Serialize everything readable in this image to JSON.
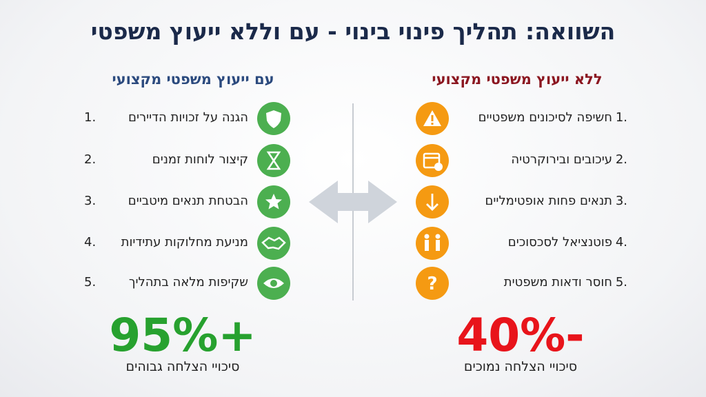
{
  "title": "השוואה: תהליך פינוי בינוי - עם וללא ייעוץ משפטי",
  "with_advice": {
    "heading": "עם ייעוץ משפטי מקצועי",
    "items": [
      {
        "number": "1.",
        "text": "הגנה על זכויות הדיירים"
      },
      {
        "number": "2.",
        "text": "קיצור לוחות זמנים"
      },
      {
        "number": "3.",
        "text": "הבטחת תנאים מיטביים"
      },
      {
        "number": "4.",
        "text": "מניעת מחלוקות עתידיות"
      },
      {
        "number": "5.",
        "text": "שקיפות מלאה בתהליך"
      }
    ],
    "stat": "95%+",
    "stat_label": "סיכויי הצלחה גבוהים"
  },
  "without_advice": {
    "heading": "ללא ייעוץ משפטי מקצועי",
    "items": [
      {
        "number": "1.",
        "text": "חשיפה לסיכונים משפטיים"
      },
      {
        "number": "2.",
        "text": "עיכובים ובירוקרטיה"
      },
      {
        "number": "3.",
        "text": "תנאים פחות אופטימליים"
      },
      {
        "number": "4.",
        "text": "פוטנציאל לסכסוכים"
      },
      {
        "number": "5.",
        "text": "חוסר ודאות משפטית"
      }
    ],
    "stat": "40%-",
    "stat_label": "סיכויי הצלחה נמוכים"
  }
}
